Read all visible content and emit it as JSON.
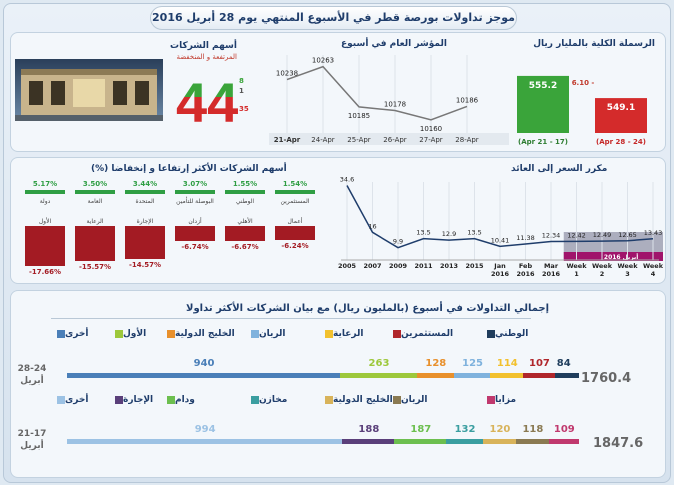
{
  "title": "موجز تداولات بورصة قطر في الأسبوع المنتهي يوم 28 أبريل 2016",
  "colors": {
    "green": "#3aa43a",
    "red": "#d42b2b",
    "navy": "#1f3d6b",
    "darkred": "#a31b23"
  },
  "cap": {
    "title": "الرسملة الكلية بالمليار ريال",
    "change": "6.10 -",
    "chart_data": {
      "type": "bar",
      "categories": [
        "(Apr 21 - 17)",
        "(Apr 28 - 24)"
      ],
      "values": [
        555.2,
        549.1
      ],
      "value_labels": [
        "555.2",
        "549.1"
      ]
    }
  },
  "index": {
    "title": "المؤشر العام في أسبوع",
    "chart_data": {
      "type": "line",
      "x": [
        "21-Apr",
        "24-Apr",
        "25-Apr",
        "26-Apr",
        "27-Apr",
        "28-Apr"
      ],
      "y": [
        10238,
        10263,
        10185,
        10178,
        10160,
        10186
      ],
      "labels": [
        "10238",
        "10263",
        "10185",
        "10178",
        "10160",
        "10186"
      ]
    }
  },
  "shares": {
    "title": "أسهم الشركات",
    "subtitle": "المرتفعة و المنخفضة",
    "count": "44",
    "up": "8",
    "flat": "1",
    "down": "35"
  },
  "movers": {
    "title": "أسهم الشركات الأكثر إرتفاعا و إنخفاضا (%)",
    "chart_data": {
      "type": "bar",
      "gainers": [
        {
          "pct": "1.54%",
          "name": "المستثمرين",
          "value": 1.54
        },
        {
          "pct": "1.55%",
          "name": "الوطني",
          "value": 1.55
        },
        {
          "pct": "3.07%",
          "name": "البوصلة للتأمين",
          "value": 3.07
        },
        {
          "pct": "3.44%",
          "name": "المتحدة",
          "value": 3.44
        },
        {
          "pct": "3.50%",
          "name": "العامة",
          "value": 3.5
        },
        {
          "pct": "5.17%",
          "name": "دولة",
          "value": 5.17
        }
      ],
      "losers": [
        {
          "pct": "-6.24%",
          "name": "أعمال",
          "value": -6.24
        },
        {
          "pct": "-6.67%",
          "name": "الأهلي",
          "value": -6.67
        },
        {
          "pct": "-6.74%",
          "name": "أزدان",
          "value": -6.74
        },
        {
          "pct": "-14.57%",
          "name": "الإجارة",
          "value": -14.57
        },
        {
          "pct": "-15.57%",
          "name": "الرعاية",
          "value": -15.57
        },
        {
          "pct": "-17.66%",
          "name": "الأول",
          "value": -17.66
        }
      ]
    }
  },
  "pe": {
    "title": "مكرر السعر إلى العائد",
    "highlight": "أبريل 2016",
    "chart_data": {
      "type": "line",
      "x": [
        "2005",
        "2007",
        "2009",
        "2011",
        "2013",
        "2015",
        "Jan 2016",
        "Feb 2016",
        "Mar 2016",
        "Week 1",
        "Week 2",
        "Week 3",
        "Week 4"
      ],
      "y": [
        34.6,
        16,
        9.9,
        13.5,
        12.9,
        13.5,
        10.41,
        11.38,
        12.34,
        12.42,
        12.49,
        12.65,
        13.43
      ],
      "labels": [
        "34.6",
        "16",
        "9.9",
        "13.5",
        "12.9",
        "13.5",
        "10.41",
        "11.38",
        "12.34",
        "12.42",
        "12.49",
        "12.65",
        "13.43"
      ]
    }
  },
  "trading": {
    "title": "إجمالي التداولات في أسبوع (بالمليون ريال) مع بيان الشركات الأكثر تداولا",
    "week1": {
      "label1": "28-24",
      "label2": "أبريل",
      "total": "1760.4",
      "legend": [
        {
          "name": "الوطني",
          "color": "#1f3d5c"
        },
        {
          "name": "المستثمرين",
          "color": "#b0262b"
        },
        {
          "name": "الرعاية",
          "color": "#f2c12e"
        },
        {
          "name": "الريان",
          "color": "#7fb2dd"
        },
        {
          "name": "الخليج الدولية",
          "color": "#e8902c"
        },
        {
          "name": "الأول",
          "color": "#9dc83b"
        },
        {
          "name": "أخرى",
          "color": "#4a7fb8"
        }
      ],
      "chart_data": {
        "type": "bar",
        "categories": [
          "الوطني",
          "المستثمرين",
          "الرعاية",
          "الريان",
          "الخليج الدولية",
          "الأول",
          "أخرى"
        ],
        "values": [
          84,
          107,
          114,
          125,
          128,
          263,
          940
        ],
        "value_labels": [
          "84",
          "107",
          "114",
          "125",
          "128",
          "263",
          "940"
        ]
      }
    },
    "week2": {
      "label1": "21-17",
      "label2": "أبريل",
      "total": "1847.6",
      "legend": [
        {
          "name": "مزايا",
          "color": "#c0396e"
        },
        {
          "name": "الريان",
          "color": "#8a7a52"
        },
        {
          "name": "الخليج الدولية",
          "color": "#d8b35a"
        },
        {
          "name": "مخازن",
          "color": "#3a9ea0"
        },
        {
          "name": "ودام",
          "color": "#6cbf4f"
        },
        {
          "name": "الإجارة",
          "color": "#5a3f7a"
        },
        {
          "name": "أخرى",
          "color": "#9cc2e4"
        }
      ],
      "chart_data": {
        "type": "bar",
        "categories": [
          "مزايا",
          "الريان",
          "الخليج الدولية",
          "مخازن",
          "ودام",
          "الإجارة",
          "أخرى"
        ],
        "values": [
          109,
          118,
          120,
          132,
          187,
          188,
          994
        ],
        "value_labels": [
          "109",
          "118",
          "120",
          "132",
          "187",
          "188",
          "994"
        ]
      }
    }
  }
}
